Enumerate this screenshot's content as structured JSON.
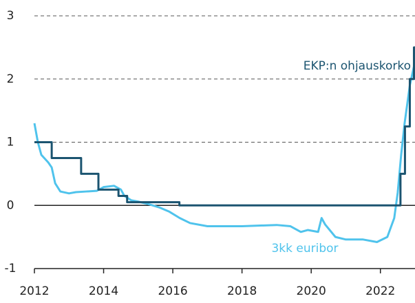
{
  "chart_data": {
    "type": "line",
    "xlim": [
      2012,
      2023
    ],
    "xticks": [
      2012,
      2014,
      2016,
      2018,
      2020,
      2022
    ],
    "ylim": [
      -1,
      3
    ],
    "yticks": [
      -1,
      0,
      1,
      2,
      3
    ],
    "grid": true,
    "series": [
      {
        "name": "EKP:n ohjauskorko",
        "color": "#1b5470",
        "step": true,
        "x": [
          2012.0,
          2012.5,
          2013.35,
          2013.85,
          2014.43,
          2014.68,
          2016.19,
          2022.58,
          2022.71,
          2022.85,
          2022.97
        ],
        "values": [
          1.0,
          0.75,
          0.5,
          0.25,
          0.15,
          0.05,
          0,
          0.5,
          1.25,
          2.0,
          2.5
        ]
      },
      {
        "name": "3kk euribor",
        "color": "#4fc3ec",
        "step": false,
        "x": [
          2012.0,
          2012.1,
          2012.2,
          2012.4,
          2012.5,
          2012.6,
          2012.75,
          2013.0,
          2013.2,
          2013.5,
          2013.8,
          2014.0,
          2014.3,
          2014.5,
          2014.6,
          2014.8,
          2015.0,
          2015.3,
          2015.6,
          2015.9,
          2016.2,
          2016.5,
          2017.0,
          2018.0,
          2019.0,
          2019.4,
          2019.7,
          2019.9,
          2020.2,
          2020.3,
          2020.4,
          2020.7,
          2021.0,
          2021.5,
          2021.9,
          2022.2,
          2022.4,
          2022.5,
          2022.6,
          2022.7,
          2022.85,
          2022.97
        ],
        "values": [
          1.3,
          1.0,
          0.8,
          0.68,
          0.6,
          0.35,
          0.22,
          0.19,
          0.21,
          0.22,
          0.23,
          0.29,
          0.31,
          0.25,
          0.15,
          0.08,
          0.06,
          0.02,
          -0.03,
          -0.1,
          -0.2,
          -0.28,
          -0.33,
          -0.33,
          -0.31,
          -0.33,
          -0.42,
          -0.39,
          -0.42,
          -0.2,
          -0.3,
          -0.5,
          -0.54,
          -0.54,
          -0.58,
          -0.5,
          -0.2,
          0.2,
          0.8,
          1.3,
          1.9,
          2.2
        ]
      }
    ]
  }
}
